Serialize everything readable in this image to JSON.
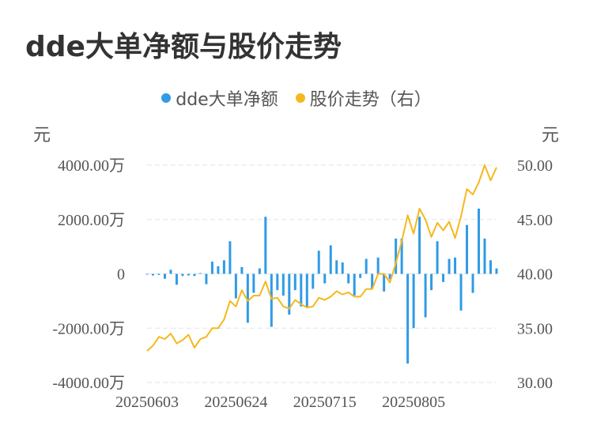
{
  "title": "dde大单净额与股价走势",
  "legend": [
    {
      "label": "dde大单净额",
      "color": "#2f9be6"
    },
    {
      "label": "股价走势（右）",
      "color": "#f5b81e"
    }
  ],
  "chart_data": {
    "type": "bar",
    "left_axis": {
      "unit": "元",
      "ticks": [
        "4000.00万",
        "2000.00万",
        "0",
        "-2000.00万",
        "-4000.00万"
      ],
      "min": -4000,
      "max": 4000
    },
    "right_axis": {
      "unit": "元",
      "ticks": [
        "50.00",
        "45.00",
        "40.00",
        "35.00",
        "30.00"
      ],
      "min": 30,
      "max": 50
    },
    "x_tick_labels": [
      "20250603",
      "20250624",
      "20250715",
      "20250805"
    ],
    "x_tick_indices": [
      0,
      15,
      30,
      45
    ],
    "series": [
      {
        "name": "dde大单净额",
        "kind": "bar",
        "axis": "left",
        "color": "#2f9be6",
        "values": [
          0,
          -60,
          -40,
          -180,
          150,
          -400,
          -80,
          -60,
          -80,
          30,
          -380,
          450,
          280,
          500,
          1200,
          -900,
          250,
          -1800,
          -700,
          200,
          2100,
          -1950,
          -600,
          -800,
          -1500,
          -600,
          -1200,
          -1250,
          -550,
          850,
          -350,
          1050,
          500,
          420,
          -350,
          -800,
          -150,
          550,
          -550,
          600,
          -650,
          -200,
          1300,
          1300,
          -3300,
          -2000,
          2100,
          -1600,
          -600,
          1200,
          -300,
          550,
          600,
          -1350,
          1800,
          -700,
          2400,
          1300,
          500,
          200
        ]
      },
      {
        "name": "股价走势（右）",
        "kind": "line",
        "axis": "right",
        "color": "#f5b81e",
        "values": [
          32.9,
          33.4,
          34.2,
          34.0,
          34.5,
          33.6,
          33.9,
          34.4,
          33.2,
          34.0,
          34.2,
          35.0,
          35.0,
          35.8,
          37.5,
          37.0,
          38.5,
          37.5,
          38.0,
          38.0,
          39.3,
          37.7,
          37.8,
          37.0,
          36.8,
          37.6,
          37.2,
          36.9,
          37.0,
          37.8,
          37.6,
          37.9,
          38.4,
          38.1,
          38.3,
          37.9,
          37.9,
          38.6,
          38.6,
          40.0,
          40.0,
          39.2,
          41.0,
          43.0,
          45.4,
          43.7,
          46.0,
          45.0,
          43.4,
          44.7,
          44.0,
          44.8,
          43.3,
          45.3,
          47.8,
          47.3,
          48.4,
          50.0,
          48.6,
          49.8
        ]
      }
    ],
    "grid": true
  }
}
